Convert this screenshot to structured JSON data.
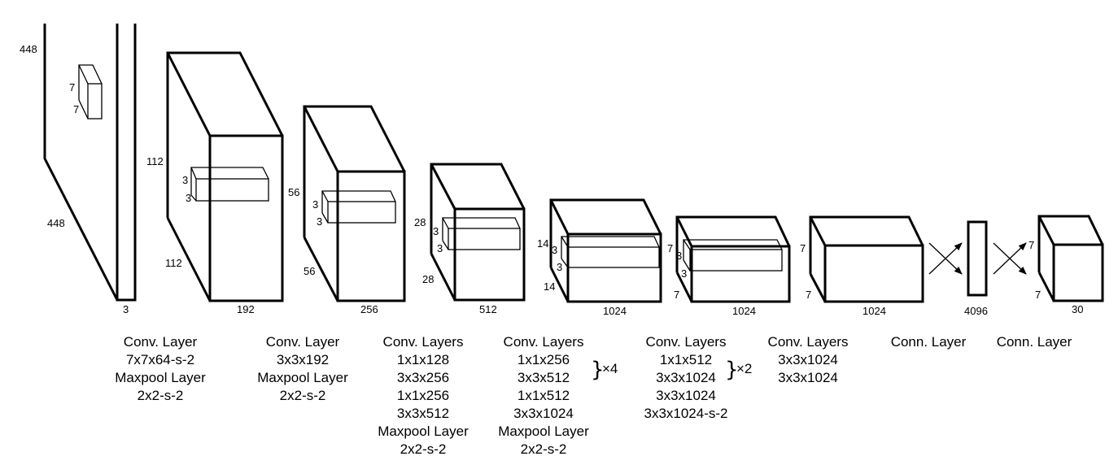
{
  "dimensions": {
    "input": {
      "height": "448",
      "width": "448",
      "depth": "3",
      "kernel_h": "7",
      "kernel_w": "7"
    },
    "block1": {
      "height": "112",
      "width": "112",
      "depth": "192",
      "kernel_h": "3",
      "kernel_w": "3"
    },
    "block2": {
      "height": "56",
      "width": "56",
      "depth": "256",
      "kernel_h": "3",
      "kernel_w": "3"
    },
    "block3": {
      "height": "28",
      "width": "28",
      "depth": "512",
      "kernel_h": "3",
      "kernel_w": "3"
    },
    "block4": {
      "height": "14",
      "width": "14",
      "depth": "1024",
      "kernel_h": "3",
      "kernel_w": "3"
    },
    "block5": {
      "height": "7",
      "width": "7",
      "depth": "1024",
      "kernel_h": "3",
      "kernel_w": "3"
    },
    "block6": {
      "height": "7",
      "width": "7",
      "depth": "1024"
    },
    "fc": {
      "depth": "4096"
    },
    "output": {
      "height": "7",
      "width": "7",
      "depth": "30"
    }
  },
  "captions": [
    [
      "Conv. Layer",
      "7x7x64-s-2",
      "Maxpool Layer",
      "2x2-s-2"
    ],
    [
      "Conv. Layer",
      "3x3x192",
      "Maxpool Layer",
      "2x2-s-2"
    ],
    [
      "Conv. Layers",
      "1x1x128",
      "3x3x256",
      "1x1x256",
      "3x3x512",
      "Maxpool Layer",
      "2x2-s-2"
    ],
    [
      "Conv. Layers",
      "1x1x256",
      "3x3x512",
      "1x1x512",
      "3x3x1024",
      "Maxpool Layer",
      "2x2-s-2"
    ],
    [
      "Conv. Layers",
      "1x1x512",
      "3x3x1024",
      "3x3x1024",
      "3x3x1024-s-2"
    ],
    [
      "Conv. Layers",
      "3x3x1024",
      "3x3x1024"
    ],
    [
      "Conn. Layer"
    ],
    [
      "Conn. Layer"
    ]
  ],
  "repeats": {
    "block4": "×4",
    "block5": "×2"
  },
  "brace_glyph": "}"
}
